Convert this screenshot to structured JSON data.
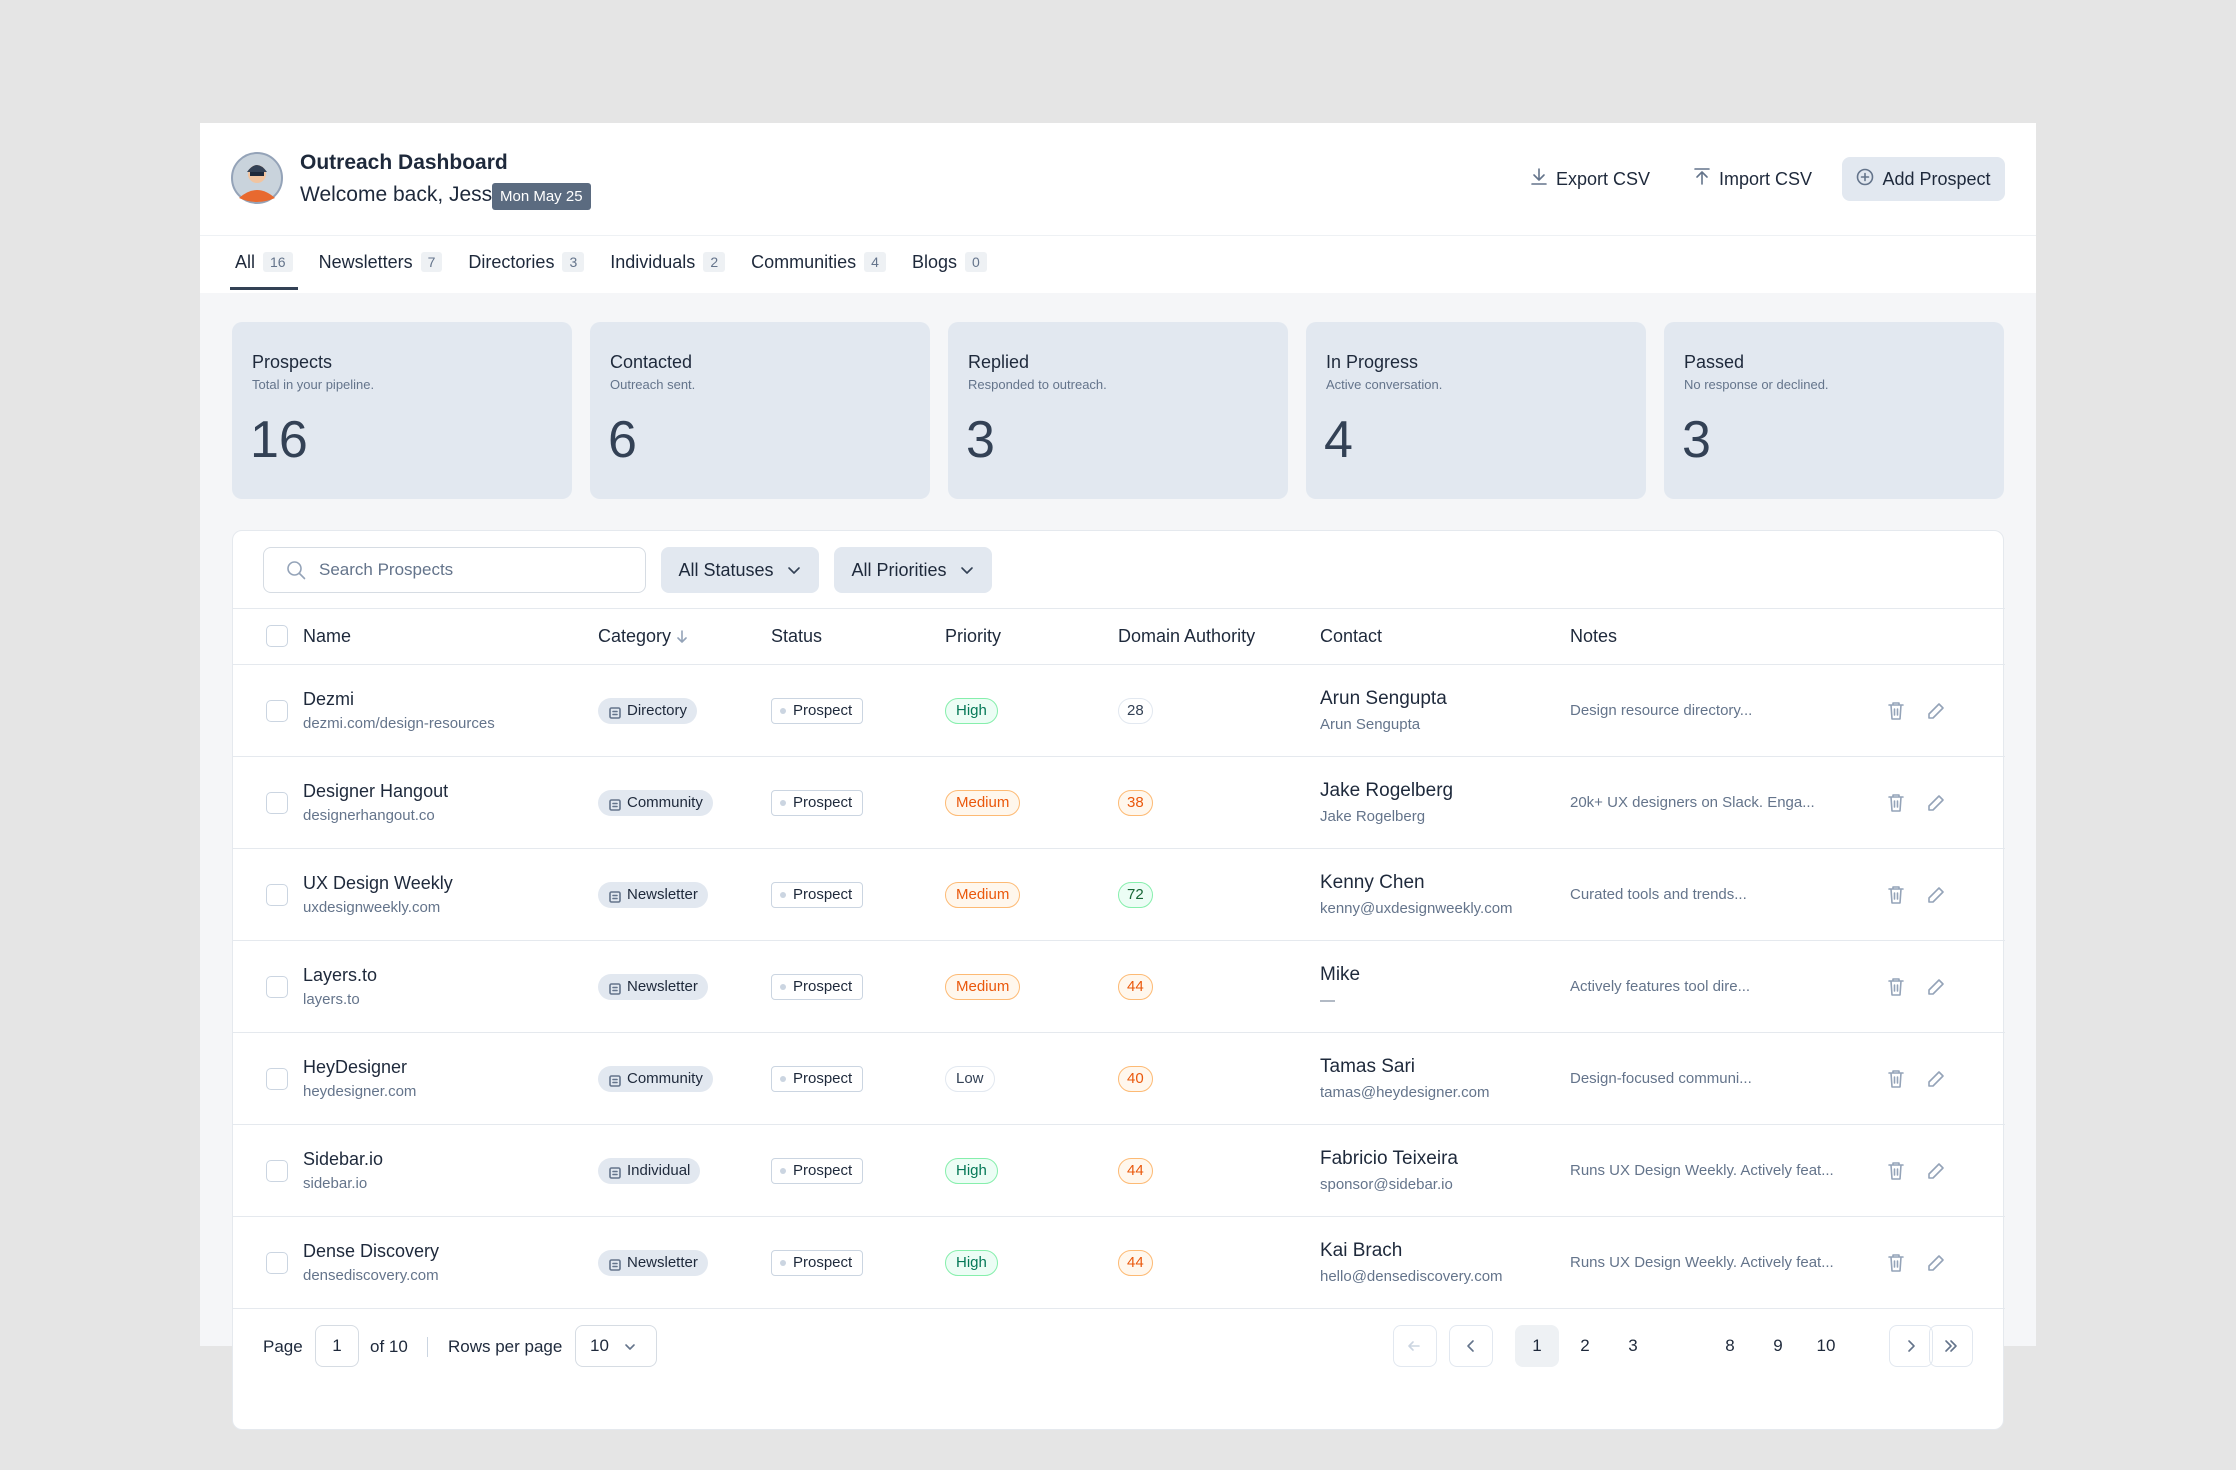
{
  "header": {
    "title": "Outreach Dashboard",
    "welcome": "Welcome back, Jess",
    "date": "Mon May 25",
    "actions": [
      "Export CSV",
      "Import CSV",
      "Add Prospect"
    ]
  },
  "tabs": [
    {
      "label": "All",
      "count": 16
    },
    {
      "label": "Newsletters",
      "count": 7
    },
    {
      "label": "Directories",
      "count": 3
    },
    {
      "label": "Individuals",
      "count": 2
    },
    {
      "label": "Communities",
      "count": 4
    },
    {
      "label": "Blogs",
      "count": 0
    }
  ],
  "stats": [
    {
      "label": "Prospects",
      "caption": "Total in your pipeline.",
      "value": 16
    },
    {
      "label": "Contacted",
      "caption": "Outreach sent.",
      "value": 6
    },
    {
      "label": "Replied",
      "caption": "Responded to outreach.",
      "value": 3
    },
    {
      "label": "In Progress",
      "caption": "Active conversation.",
      "value": 4
    },
    {
      "label": "Passed",
      "caption": "No response or declined.",
      "value": 3
    }
  ],
  "filters": {
    "search_placeholder": "Search Prospects",
    "status": "All Statuses",
    "priority": "All Priorities"
  },
  "table": {
    "columns": [
      "Name",
      "Category",
      "Status",
      "Priority",
      "Domain Authority",
      "Contact",
      "Notes"
    ],
    "rows": [
      {
        "name": "Dezmi",
        "url": "dezmi.com/design-resources",
        "category": "Directory",
        "status": "Prospect",
        "priority": "High",
        "domain_authority": 28,
        "contact_name": "Arun Sengupta",
        "contact_detail": "Arun Sengupta",
        "notes": "Design resource directory..."
      },
      {
        "name": "Designer Hangout",
        "url": "designerhangout.co",
        "category": "Community",
        "status": "Prospect",
        "priority": "Medium",
        "domain_authority": 38,
        "contact_name": "Jake Rogelberg",
        "contact_detail": "Jake Rogelberg",
        "notes": "20k+ UX designers on Slack. Enga..."
      },
      {
        "name": "UX Design Weekly",
        "url": "uxdesignweekly.com",
        "category": "Newsletter",
        "status": "Prospect",
        "priority": "Medium",
        "domain_authority": 72,
        "contact_name": "Kenny Chen",
        "contact_detail": "kenny@uxdesignweekly.com",
        "notes": "Curated tools and trends..."
      },
      {
        "name": "Layers.to",
        "url": "layers.to",
        "category": "Newsletter",
        "status": "Prospect",
        "priority": "Medium",
        "domain_authority": 44,
        "contact_name": "Mike",
        "contact_detail": "—",
        "notes": "Actively features tool dire..."
      },
      {
        "name": "HeyDesigner",
        "url": "heydesigner.com",
        "category": "Community",
        "status": "Prospect",
        "priority": "Low",
        "domain_authority": 40,
        "contact_name": "Tamas Sari",
        "contact_detail": "tamas@heydesigner.com",
        "notes": "Design-focused communi..."
      },
      {
        "name": "Sidebar.io",
        "url": "sidebar.io",
        "category": "Individual",
        "status": "Prospect",
        "priority": "High",
        "domain_authority": 44,
        "contact_name": "Fabricio Teixeira",
        "contact_detail": "sponsor@sidebar.io",
        "notes": "Runs UX Design Weekly. Actively feat..."
      },
      {
        "name": "Dense Discovery",
        "url": "densediscovery.com",
        "category": "Newsletter",
        "status": "Prospect",
        "priority": "High",
        "domain_authority": 44,
        "contact_name": "Kai Brach",
        "contact_detail": "hello@densediscovery.com",
        "notes": "Runs UX Design Weekly. Actively feat..."
      }
    ]
  },
  "pagination": {
    "page_label": "Page",
    "page": 1,
    "of_label": "of 10",
    "rows_label": "Rows per page",
    "rows_per_page": 10,
    "pages": [
      1,
      2,
      3,
      8,
      9,
      10
    ]
  }
}
